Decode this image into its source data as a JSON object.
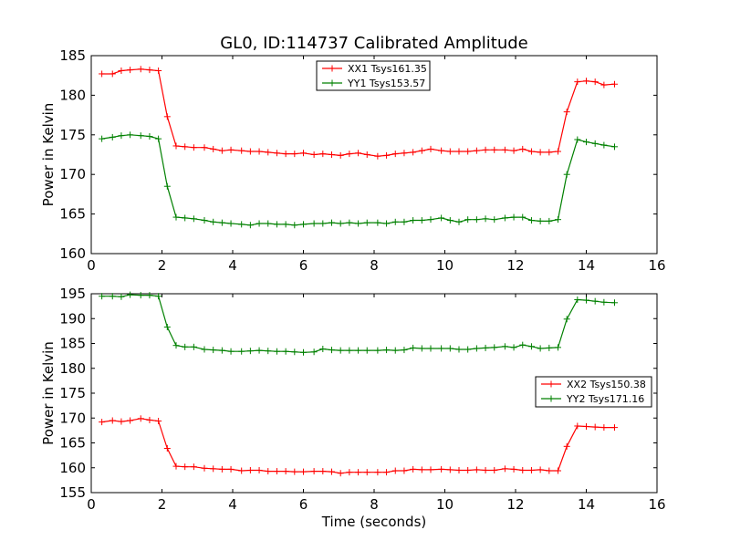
{
  "figure_title": "GL0, ID:114737 Calibrated Amplitude",
  "chart_data": [
    {
      "type": "line",
      "title": "GL0, ID:114737 Calibrated Amplitude",
      "xlabel": "",
      "ylabel": "Power in Kelvin",
      "xlim": [
        0,
        16
      ],
      "ylim": [
        160,
        185
      ],
      "xticks": [
        0,
        2,
        4,
        6,
        8,
        10,
        12,
        14,
        16
      ],
      "yticks": [
        160,
        165,
        170,
        175,
        180,
        185
      ],
      "legend_position": "top-center",
      "series": [
        {
          "name": "XX1 Tsys161.35",
          "color": "#ff0000",
          "x": [
            0.3,
            0.6,
            0.85,
            1.1,
            1.4,
            1.65,
            1.9,
            2.15,
            2.4,
            2.65,
            2.9,
            3.2,
            3.45,
            3.7,
            3.95,
            4.25,
            4.5,
            4.75,
            5.0,
            5.25,
            5.5,
            5.75,
            6.0,
            6.3,
            6.55,
            6.8,
            7.05,
            7.3,
            7.55,
            7.8,
            8.1,
            8.35,
            8.6,
            8.85,
            9.1,
            9.35,
            9.6,
            9.9,
            10.15,
            10.4,
            10.65,
            10.9,
            11.15,
            11.4,
            11.7,
            11.95,
            12.2,
            12.45,
            12.7,
            12.95,
            13.2,
            13.45,
            13.75,
            14.0,
            14.25,
            14.5,
            14.8
          ],
          "y": [
            182.7,
            182.7,
            183.1,
            183.2,
            183.3,
            183.2,
            183.1,
            177.3,
            173.6,
            173.5,
            173.4,
            173.4,
            173.2,
            173.0,
            173.1,
            173.0,
            172.9,
            172.9,
            172.8,
            172.7,
            172.6,
            172.6,
            172.7,
            172.5,
            172.6,
            172.5,
            172.4,
            172.6,
            172.7,
            172.5,
            172.3,
            172.4,
            172.6,
            172.7,
            172.8,
            173.0,
            173.2,
            173.0,
            172.9,
            172.9,
            172.9,
            173.0,
            173.1,
            173.1,
            173.1,
            173.0,
            173.2,
            172.9,
            172.8,
            172.8,
            172.9,
            177.9,
            181.7,
            181.8,
            181.7,
            181.3,
            181.4
          ]
        },
        {
          "name": "YY1 Tsys153.57",
          "color": "#008000",
          "x": [
            0.3,
            0.6,
            0.85,
            1.1,
            1.4,
            1.65,
            1.9,
            2.15,
            2.4,
            2.65,
            2.9,
            3.2,
            3.45,
            3.7,
            3.95,
            4.25,
            4.5,
            4.75,
            5.0,
            5.25,
            5.5,
            5.75,
            6.0,
            6.3,
            6.55,
            6.8,
            7.05,
            7.3,
            7.55,
            7.8,
            8.1,
            8.35,
            8.6,
            8.85,
            9.1,
            9.35,
            9.6,
            9.9,
            10.15,
            10.4,
            10.65,
            10.9,
            11.15,
            11.4,
            11.7,
            11.95,
            12.2,
            12.45,
            12.7,
            12.95,
            13.2,
            13.45,
            13.75,
            14.0,
            14.25,
            14.5,
            14.8
          ],
          "y": [
            174.5,
            174.7,
            174.9,
            175.0,
            174.9,
            174.8,
            174.5,
            168.5,
            164.6,
            164.5,
            164.4,
            164.2,
            164.0,
            163.9,
            163.8,
            163.7,
            163.6,
            163.8,
            163.8,
            163.7,
            163.7,
            163.6,
            163.7,
            163.8,
            163.8,
            163.9,
            163.8,
            163.9,
            163.8,
            163.9,
            163.9,
            163.8,
            164.0,
            164.0,
            164.2,
            164.2,
            164.3,
            164.5,
            164.2,
            164.0,
            164.3,
            164.3,
            164.4,
            164.3,
            164.5,
            164.6,
            164.6,
            164.2,
            164.1,
            164.1,
            164.3,
            170.0,
            174.4,
            174.1,
            173.9,
            173.7,
            173.5
          ]
        }
      ]
    },
    {
      "type": "line",
      "title": "",
      "xlabel": "Time (seconds)",
      "ylabel": "Power in Kelvin",
      "xlim": [
        0,
        16
      ],
      "ylim": [
        155,
        195
      ],
      "xticks": [
        0,
        2,
        4,
        6,
        8,
        10,
        12,
        14,
        16
      ],
      "yticks": [
        155,
        160,
        165,
        170,
        175,
        180,
        185,
        190,
        195
      ],
      "legend_position": "center-right",
      "series": [
        {
          "name": "XX2 Tsys150.38",
          "color": "#ff0000",
          "x": [
            0.3,
            0.6,
            0.85,
            1.1,
            1.4,
            1.65,
            1.9,
            2.15,
            2.4,
            2.65,
            2.9,
            3.2,
            3.45,
            3.7,
            3.95,
            4.25,
            4.5,
            4.75,
            5.0,
            5.25,
            5.5,
            5.75,
            6.0,
            6.3,
            6.55,
            6.8,
            7.05,
            7.3,
            7.55,
            7.8,
            8.1,
            8.35,
            8.6,
            8.85,
            9.1,
            9.35,
            9.6,
            9.9,
            10.15,
            10.4,
            10.65,
            10.9,
            11.15,
            11.4,
            11.7,
            11.95,
            12.2,
            12.45,
            12.7,
            12.95,
            13.2,
            13.45,
            13.75,
            14.0,
            14.25,
            14.5,
            14.8
          ],
          "y": [
            169.2,
            169.5,
            169.3,
            169.5,
            169.9,
            169.6,
            169.4,
            163.9,
            160.3,
            160.2,
            160.2,
            159.9,
            159.8,
            159.7,
            159.7,
            159.4,
            159.5,
            159.5,
            159.3,
            159.3,
            159.3,
            159.2,
            159.2,
            159.3,
            159.3,
            159.2,
            158.9,
            159.1,
            159.1,
            159.1,
            159.1,
            159.1,
            159.4,
            159.4,
            159.7,
            159.6,
            159.6,
            159.7,
            159.6,
            159.5,
            159.5,
            159.6,
            159.5,
            159.5,
            159.8,
            159.7,
            159.5,
            159.5,
            159.6,
            159.4,
            159.4,
            164.3,
            168.4,
            168.3,
            168.2,
            168.1,
            168.1
          ]
        },
        {
          "name": "YY2 Tsys171.16",
          "color": "#008000",
          "x": [
            0.3,
            0.6,
            0.85,
            1.1,
            1.4,
            1.65,
            1.9,
            2.15,
            2.4,
            2.65,
            2.9,
            3.2,
            3.45,
            3.7,
            3.95,
            4.25,
            4.5,
            4.75,
            5.0,
            5.25,
            5.5,
            5.75,
            6.0,
            6.3,
            6.55,
            6.8,
            7.05,
            7.3,
            7.55,
            7.8,
            8.1,
            8.35,
            8.6,
            8.85,
            9.1,
            9.35,
            9.6,
            9.9,
            10.15,
            10.4,
            10.65,
            10.9,
            11.15,
            11.4,
            11.7,
            11.95,
            12.2,
            12.45,
            12.7,
            12.95,
            13.2,
            13.45,
            13.75,
            14.0,
            14.25,
            14.5,
            14.8
          ],
          "y": [
            194.5,
            194.5,
            194.4,
            194.8,
            194.7,
            194.7,
            194.5,
            188.3,
            184.6,
            184.3,
            184.3,
            183.8,
            183.7,
            183.6,
            183.4,
            183.4,
            183.5,
            183.6,
            183.5,
            183.4,
            183.4,
            183.3,
            183.2,
            183.3,
            183.9,
            183.7,
            183.6,
            183.6,
            183.6,
            183.6,
            183.6,
            183.7,
            183.6,
            183.7,
            184.1,
            184.0,
            184.0,
            184.0,
            184.0,
            183.8,
            183.8,
            184.0,
            184.1,
            184.2,
            184.4,
            184.2,
            184.7,
            184.4,
            184.0,
            184.1,
            184.2,
            189.9,
            193.8,
            193.7,
            193.5,
            193.3,
            193.2
          ]
        }
      ]
    }
  ]
}
